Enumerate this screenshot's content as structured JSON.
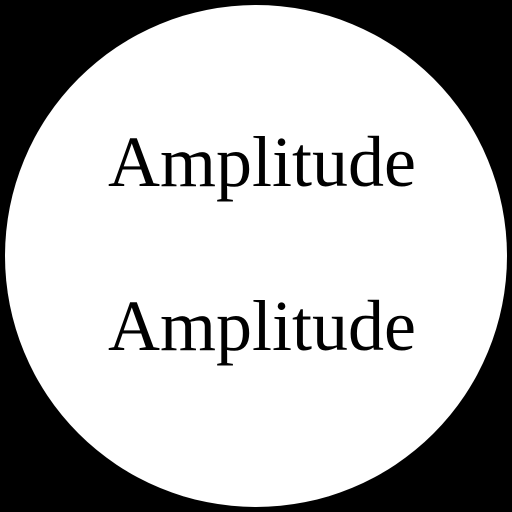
{
  "background_color": "#000000",
  "disc_color": "#ffffff",
  "text_color": "#000000",
  "labels": {
    "top": "Amplitude",
    "bottom": "Amplitude"
  }
}
